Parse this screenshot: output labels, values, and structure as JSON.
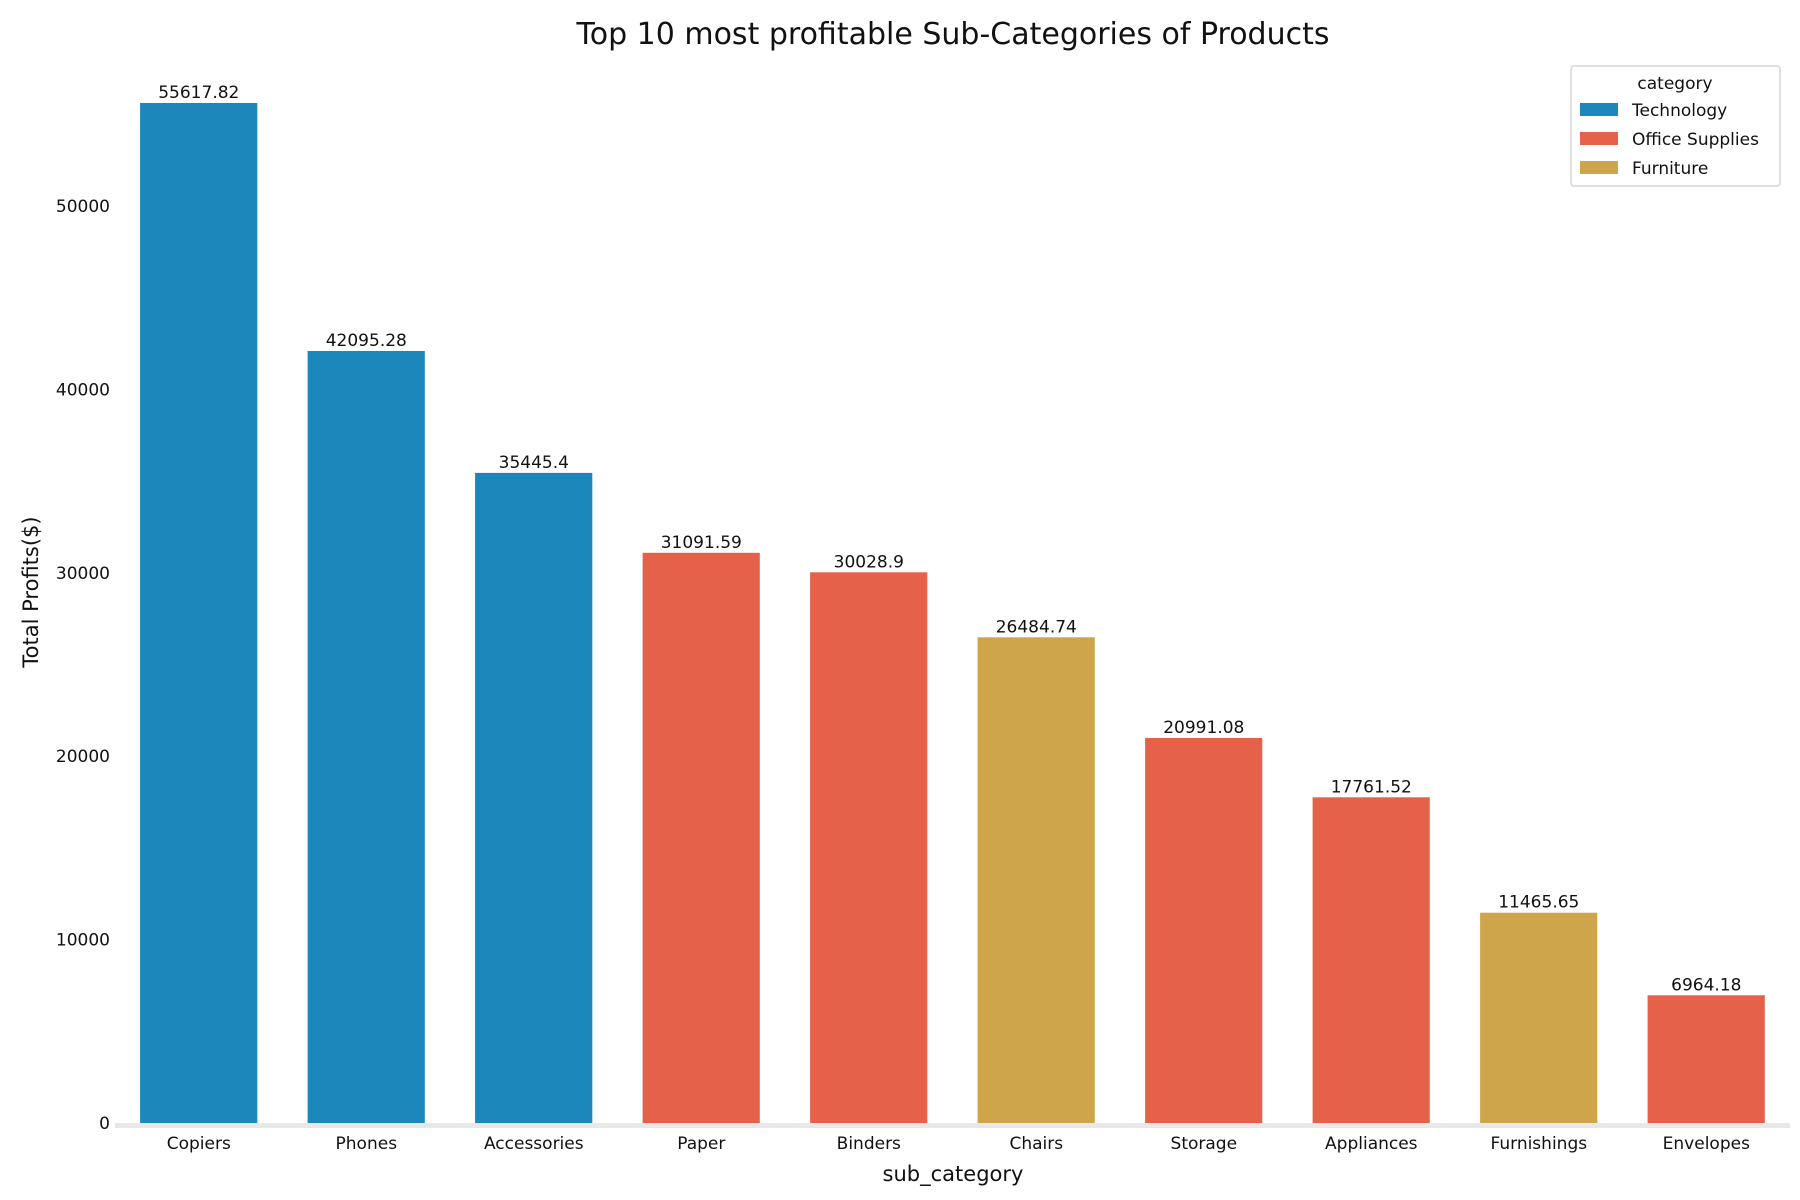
{
  "chart_data": {
    "type": "bar",
    "title": "Top 10 most profitable Sub-Categories of Products",
    "xlabel": "sub_category",
    "ylabel": "Total Profits($)",
    "ylim": [
      0,
      58000
    ],
    "yticks": [
      0,
      10000,
      20000,
      30000,
      40000,
      50000
    ],
    "ytick_labels": [
      "0",
      "10000",
      "20000",
      "30000",
      "40000",
      "50000"
    ],
    "grid": false,
    "legend": {
      "title": "category",
      "placement": "top-right",
      "entries": [
        {
          "name": "Technology",
          "color": "#1b87bb"
        },
        {
          "name": "Office Supplies",
          "color": "#e5614a"
        },
        {
          "name": "Furniture",
          "color": "#cfa54c"
        }
      ]
    },
    "categories": [
      "Copiers",
      "Phones",
      "Accessories",
      "Paper",
      "Binders",
      "Chairs",
      "Storage",
      "Appliances",
      "Furnishings",
      "Envelopes"
    ],
    "values": [
      55617.82,
      42095.28,
      35445.4,
      31091.59,
      30028.9,
      26484.74,
      20991.08,
      17761.52,
      11465.65,
      6964.18
    ],
    "value_labels": [
      "55617.82",
      "42095.28",
      "35445.4",
      "31091.59",
      "30028.9",
      "26484.74",
      "20991.08",
      "17761.52",
      "11465.65",
      "6964.18"
    ],
    "bar_category": [
      "Technology",
      "Technology",
      "Technology",
      "Office Supplies",
      "Office Supplies",
      "Furniture",
      "Office Supplies",
      "Office Supplies",
      "Furniture",
      "Office Supplies"
    ]
  }
}
